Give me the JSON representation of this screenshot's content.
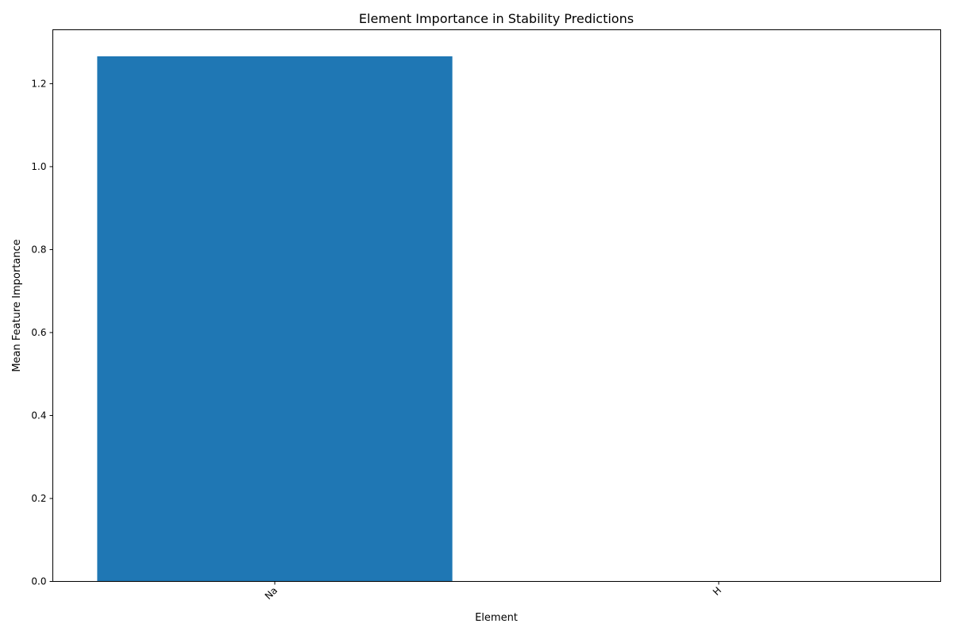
{
  "chart_data": {
    "type": "bar",
    "title": "Element Importance in Stability Predictions",
    "xlabel": "Element",
    "ylabel": "Mean Feature Importance",
    "categories": [
      "Na",
      "H"
    ],
    "values": [
      1.266,
      0.0
    ],
    "ylim": [
      0,
      1.33
    ],
    "yticks": [
      "0.0",
      "0.2",
      "0.4",
      "0.6",
      "0.8",
      "1.0",
      "1.2"
    ],
    "bar_color": "#1f77b4",
    "grid": false,
    "legend": "none"
  }
}
